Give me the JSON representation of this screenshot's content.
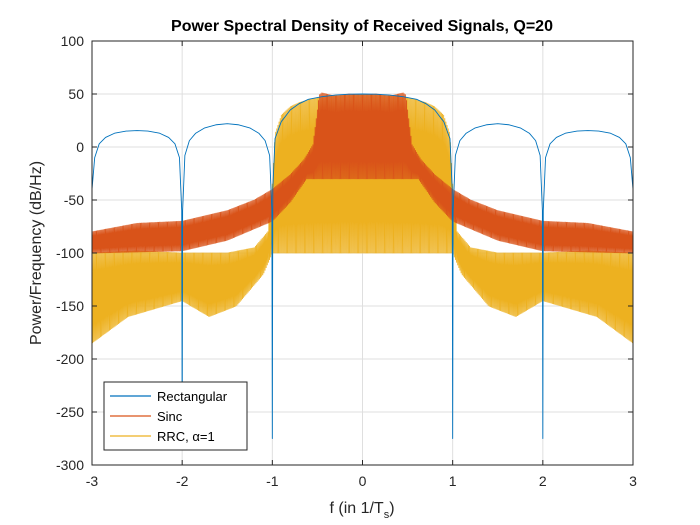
{
  "chart_data": {
    "type": "line",
    "title": "Power Spectral Density of Received Signals, Q=20",
    "xlabel_main": "f (in 1/T",
    "xlabel_sub": "s",
    "xlabel_close": ")",
    "ylabel": "Power/Frequency (dB/Hz)",
    "xlim": [
      -3,
      3
    ],
    "ylim": [
      -300,
      100
    ],
    "xticks": [
      -3,
      -2,
      -1,
      0,
      1,
      2,
      3
    ],
    "yticks": [
      100,
      50,
      0,
      -50,
      -100,
      -150,
      -200,
      -250,
      -300
    ],
    "xtick_labels": [
      "-3",
      "-2",
      "-1",
      "0",
      "1",
      "2",
      "3"
    ],
    "ytick_labels": [
      "100",
      "50",
      "0",
      "-50",
      "-100",
      "-150",
      "-200",
      "-250",
      "-300"
    ],
    "grid": true,
    "legend_position": "bottom-left",
    "series": [
      {
        "name": "Rectangular",
        "color": "#0072BD",
        "points": [
          [
            -3.0,
            -40
          ],
          [
            -2.97,
            -10
          ],
          [
            -2.92,
            3
          ],
          [
            -2.85,
            9
          ],
          [
            -2.75,
            13
          ],
          [
            -2.62,
            15
          ],
          [
            -2.5,
            15.5
          ],
          [
            -2.38,
            15
          ],
          [
            -2.25,
            13
          ],
          [
            -2.15,
            9
          ],
          [
            -2.08,
            3
          ],
          [
            -2.03,
            -10
          ],
          [
            -2.005,
            -60
          ],
          [
            -2.0,
            -275
          ],
          [
            -1.995,
            -60
          ],
          [
            -1.97,
            -8
          ],
          [
            -1.92,
            6
          ],
          [
            -1.85,
            13
          ],
          [
            -1.75,
            18
          ],
          [
            -1.62,
            21
          ],
          [
            -1.5,
            22
          ],
          [
            -1.38,
            21
          ],
          [
            -1.25,
            18
          ],
          [
            -1.15,
            13
          ],
          [
            -1.08,
            6
          ],
          [
            -1.03,
            -8
          ],
          [
            -1.005,
            -60
          ],
          [
            -1.0,
            -275
          ],
          [
            -0.995,
            -40
          ],
          [
            -0.97,
            8
          ],
          [
            -0.9,
            24
          ],
          [
            -0.8,
            35
          ],
          [
            -0.7,
            41
          ],
          [
            -0.6,
            45
          ],
          [
            -0.45,
            47.5
          ],
          [
            -0.3,
            49
          ],
          [
            -0.15,
            49.8
          ],
          [
            0.0,
            50
          ],
          [
            0.15,
            49.8
          ],
          [
            0.3,
            49
          ],
          [
            0.45,
            47.5
          ],
          [
            0.6,
            45
          ],
          [
            0.7,
            41
          ],
          [
            0.8,
            35
          ],
          [
            0.9,
            24
          ],
          [
            0.97,
            8
          ],
          [
            0.995,
            -40
          ],
          [
            1.0,
            -275
          ],
          [
            1.005,
            -60
          ],
          [
            1.03,
            -8
          ],
          [
            1.08,
            6
          ],
          [
            1.15,
            13
          ],
          [
            1.25,
            18
          ],
          [
            1.38,
            21
          ],
          [
            1.5,
            22
          ],
          [
            1.62,
            21
          ],
          [
            1.75,
            18
          ],
          [
            1.85,
            13
          ],
          [
            1.92,
            6
          ],
          [
            1.97,
            -8
          ],
          [
            1.995,
            -60
          ],
          [
            2.0,
            -275
          ],
          [
            2.005,
            -60
          ],
          [
            2.03,
            -10
          ],
          [
            2.08,
            3
          ],
          [
            2.15,
            9
          ],
          [
            2.25,
            13
          ],
          [
            2.38,
            15
          ],
          [
            2.5,
            15.5
          ],
          [
            2.62,
            15
          ],
          [
            2.75,
            13
          ],
          [
            2.85,
            9
          ],
          [
            2.92,
            3
          ],
          [
            2.97,
            -10
          ],
          [
            3.0,
            -40
          ]
        ]
      },
      {
        "name": "Sinc",
        "color": "#D95319",
        "points": [
          [
            -3.0,
            -80
          ],
          [
            -2.5,
            -72
          ],
          [
            -2.0,
            -70
          ],
          [
            -1.5,
            -60
          ],
          [
            -1.2,
            -50
          ],
          [
            -1.0,
            -40
          ],
          [
            -0.8,
            -26
          ],
          [
            -0.65,
            -12
          ],
          [
            -0.55,
            2
          ],
          [
            -0.5,
            35
          ],
          [
            -0.48,
            49
          ],
          [
            -0.45,
            51
          ],
          [
            -0.3,
            48
          ],
          [
            -0.15,
            50
          ],
          [
            0.0,
            49
          ],
          [
            0.15,
            50
          ],
          [
            0.3,
            48
          ],
          [
            0.45,
            51
          ],
          [
            0.48,
            49
          ],
          [
            0.5,
            35
          ],
          [
            0.55,
            2
          ],
          [
            0.65,
            -12
          ],
          [
            0.8,
            -26
          ],
          [
            1.0,
            -40
          ],
          [
            1.2,
            -50
          ],
          [
            1.5,
            -60
          ],
          [
            2.0,
            -70
          ],
          [
            2.5,
            -72
          ],
          [
            3.0,
            -80
          ]
        ],
        "ripple_floor": [
          [
            -3.0,
            -100
          ],
          [
            -2.0,
            -98
          ],
          [
            -1.5,
            -88
          ],
          [
            -1.0,
            -70
          ],
          [
            -0.8,
            -52
          ],
          [
            -0.62,
            -30
          ],
          [
            0.62,
            -30
          ],
          [
            0.8,
            -52
          ],
          [
            1.0,
            -70
          ],
          [
            1.5,
            -88
          ],
          [
            2.0,
            -98
          ],
          [
            3.0,
            -100
          ]
        ]
      },
      {
        "name": "RRC, α=1",
        "color": "#EDB120",
        "points": [
          [
            -3.0,
            -100
          ],
          [
            -2.5,
            -98
          ],
          [
            -2.0,
            -100
          ],
          [
            -1.5,
            -100
          ],
          [
            -1.2,
            -95
          ],
          [
            -1.05,
            -80
          ],
          [
            -1.0,
            -35
          ],
          [
            -0.97,
            12
          ],
          [
            -0.9,
            30
          ],
          [
            -0.8,
            38
          ],
          [
            -0.7,
            42
          ],
          [
            -0.55,
            45.5
          ],
          [
            -0.4,
            47.5
          ],
          [
            -0.2,
            49
          ],
          [
            0.0,
            49.5
          ],
          [
            0.2,
            49
          ],
          [
            0.4,
            47.5
          ],
          [
            0.55,
            45.5
          ],
          [
            0.7,
            42
          ],
          [
            0.8,
            38
          ],
          [
            0.9,
            30
          ],
          [
            0.97,
            12
          ],
          [
            1.0,
            -35
          ],
          [
            1.05,
            -80
          ],
          [
            1.2,
            -95
          ],
          [
            1.5,
            -100
          ],
          [
            2.0,
            -100
          ],
          [
            2.5,
            -98
          ],
          [
            3.0,
            -100
          ]
        ],
        "ripple_floor": [
          [
            -3.0,
            -185
          ],
          [
            -2.6,
            -160
          ],
          [
            -2.0,
            -145
          ],
          [
            -1.7,
            -160
          ],
          [
            -1.4,
            -150
          ],
          [
            -1.1,
            -120
          ],
          [
            -1.0,
            -100
          ],
          [
            1.0,
            -100
          ],
          [
            1.1,
            -120
          ],
          [
            1.4,
            -150
          ],
          [
            1.7,
            -160
          ],
          [
            2.0,
            -145
          ],
          [
            2.6,
            -160
          ],
          [
            3.0,
            -185
          ]
        ]
      }
    ]
  }
}
